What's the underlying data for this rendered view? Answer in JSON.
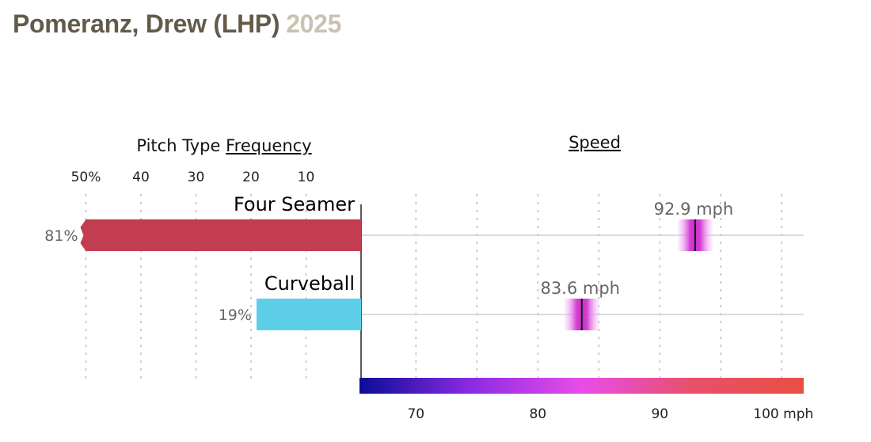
{
  "header": {
    "player": "Pomeranz, Drew (LHP)",
    "year": "2025"
  },
  "chart_data": {
    "type": "bar",
    "frequency_panel": {
      "title_prefix": "Pitch Type ",
      "title_link": "Frequency",
      "ticks": [
        "50%",
        "40",
        "30",
        "20",
        "10"
      ],
      "tick_values": [
        50,
        40,
        30,
        20,
        10
      ],
      "xlim": [
        0,
        50
      ]
    },
    "speed_panel": {
      "title": "Speed",
      "ticks": [
        "70",
        "80",
        "90",
        "100 mph"
      ],
      "tick_values": [
        70,
        80,
        90,
        100
      ],
      "gridlines": [
        70,
        75,
        80,
        85,
        90,
        95,
        100
      ],
      "xlim": [
        65.5,
        101.8
      ],
      "colorbar": [
        "#0c0c96",
        "#8a2be2",
        "#e84de8",
        "#e8506a",
        "#e84f43"
      ]
    },
    "pitches": [
      {
        "name": "Four Seamer",
        "frequency": 81,
        "frequency_label": "81%",
        "speed": 92.9,
        "speed_label": "92.9 mph",
        "color": "#c23d4f"
      },
      {
        "name": "Curveball",
        "frequency": 19,
        "frequency_label": "19%",
        "speed": 83.6,
        "speed_label": "83.6 mph",
        "color": "#5dcfe8"
      }
    ]
  }
}
